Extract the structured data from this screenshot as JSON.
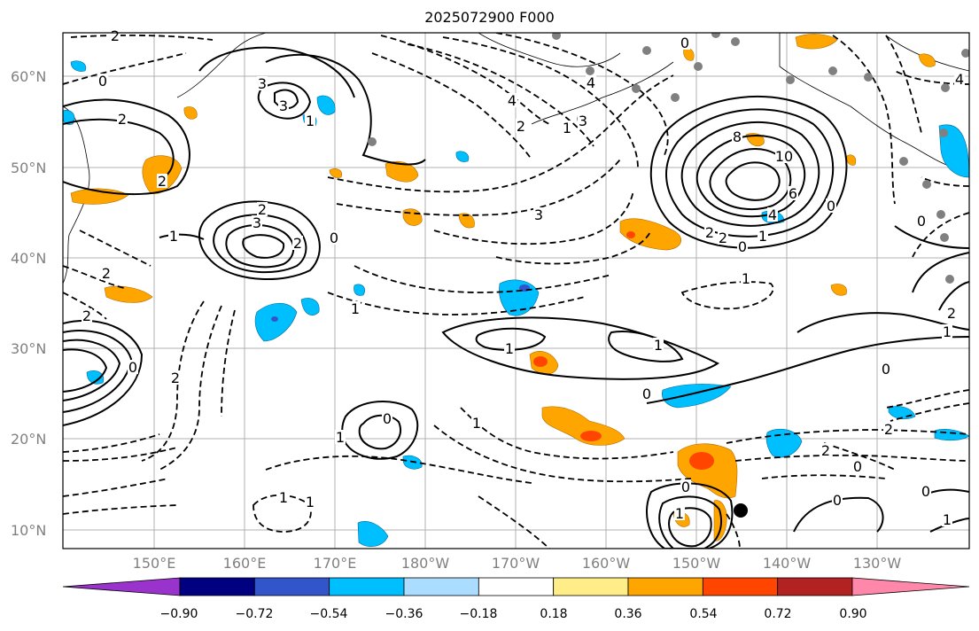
{
  "title": "2025072900 F000",
  "lat_labels": [
    "60°N",
    "50°N",
    "40°N",
    "30°N",
    "20°N",
    "10°N"
  ],
  "lon_labels": [
    "150°E",
    "160°E",
    "170°E",
    "180°W",
    "170°W",
    "160°W",
    "150°W",
    "140°W",
    "130°W"
  ],
  "contour_labels": [
    "2",
    "0",
    "2",
    "2",
    "3",
    "3",
    "2",
    "3",
    "1",
    "0",
    "1",
    "2",
    "2",
    "4",
    "2",
    "1",
    "1",
    "0",
    "3",
    "4",
    "3",
    "0",
    "8",
    "10",
    "6",
    "4",
    "2",
    "2",
    "0",
    "1",
    "0",
    "2",
    "4",
    "0",
    "1",
    "1",
    "0",
    "0",
    "1",
    "1",
    "1",
    "2",
    "2",
    "0",
    "0",
    "1",
    "0",
    "1",
    "1",
    "0",
    "1",
    "0",
    "1",
    "2",
    "2"
  ],
  "colorbar": {
    "colors": [
      "#9933cc",
      "#000080",
      "#3355cc",
      "#00bfff",
      "#aaddff",
      "#ffffff",
      "#ffee88",
      "#ffa500",
      "#ff4500",
      "#b22222",
      "#ff88aa"
    ],
    "labels": [
      "−0.90",
      "−0.72",
      "−0.54",
      "−0.36",
      "−0.18",
      "0.18",
      "0.36",
      "0.54",
      "0.72",
      "0.90"
    ]
  }
}
